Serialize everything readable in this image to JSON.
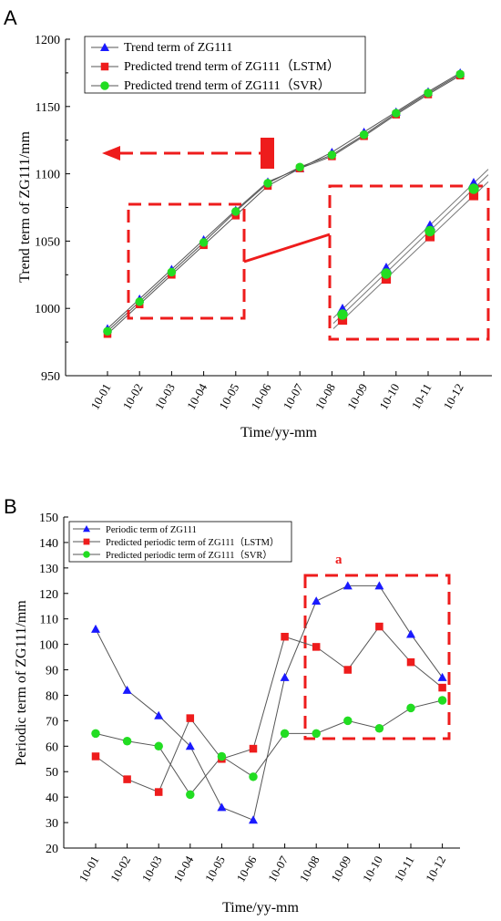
{
  "chart_data": [
    {
      "panel": "A",
      "type": "line",
      "ylabel": "Trend term of ZG111/mm",
      "xlabel": "Time/yy-mm",
      "categories": [
        "10-01",
        "10-02",
        "10-03",
        "10-04",
        "10-05",
        "10-06",
        "10-07",
        "10-08",
        "10-09",
        "10-10",
        "10-11",
        "10-12"
      ],
      "yticks": [
        "950",
        "1000",
        "1050",
        "1100",
        "1150",
        "1200"
      ],
      "ylim": [
        950,
        1200
      ],
      "series": [
        {
          "name": "Trend term of ZG111",
          "marker": "triangle",
          "color": "#1a1aff",
          "values": [
            985,
            1007,
            1029,
            1051,
            1073,
            1094,
            1104,
            1116,
            1131,
            1146,
            1161,
            1175
          ]
        },
        {
          "name": "Predicted trend term of ZG111（LSTM）",
          "marker": "square",
          "color": "#ee1c1c",
          "values": [
            981,
            1003,
            1025,
            1047,
            1069,
            1091,
            1104,
            1113,
            1128,
            1144,
            1159,
            1173
          ]
        },
        {
          "name": "Predicted trend term of ZG111（SVR）",
          "marker": "circle",
          "color": "#22dd22",
          "values": [
            983,
            1005,
            1027,
            1049,
            1072,
            1093,
            1105,
            1114,
            1129,
            1145,
            1160,
            1174
          ]
        }
      ],
      "inset_values": [
        {
          "values": [
            992,
            1022,
            1053,
            1084
          ]
        },
        {
          "values": [
            984,
            1014,
            1045,
            1075
          ]
        },
        {
          "values": [
            988,
            1018,
            1049,
            1080
          ]
        }
      ],
      "legend": "top-left",
      "grid": false
    },
    {
      "panel": "B",
      "type": "line",
      "ylabel": "Periodic term of ZG111/mm",
      "xlabel": "Time/yy-mm",
      "categories": [
        "10-01",
        "10-02",
        "10-03",
        "10-04",
        "10-05",
        "10-06",
        "10-07",
        "10-08",
        "10-09",
        "10-10",
        "10-11",
        "10-12"
      ],
      "yticks": [
        "20",
        "30",
        "40",
        "50",
        "60",
        "70",
        "80",
        "90",
        "100",
        "110",
        "120",
        "130",
        "140",
        "150"
      ],
      "ylim": [
        20,
        150
      ],
      "series": [
        {
          "name": "Periodic term of ZG111",
          "marker": "triangle",
          "color": "#1a1aff",
          "values": [
            106,
            82,
            72,
            60,
            36,
            31,
            87,
            117,
            123,
            123,
            104,
            87
          ]
        },
        {
          "name": "Predicted periodic term of ZG111（LSTM）",
          "marker": "square",
          "color": "#ee1c1c",
          "values": [
            56,
            47,
            42,
            71,
            55,
            59,
            103,
            99,
            90,
            107,
            93,
            83
          ]
        },
        {
          "name": "Predicted periodic term of ZG111（SVR）",
          "marker": "circle",
          "color": "#22dd22",
          "values": [
            65,
            62,
            60,
            41,
            56,
            48,
            65,
            65,
            70,
            67,
            75,
            78
          ]
        }
      ],
      "annotation": "a",
      "legend": "top-left",
      "grid": false
    }
  ],
  "colors": {
    "blue": "#1a1aff",
    "red": "#ee1c1c",
    "green": "#22dd22",
    "line": "#555555",
    "annotation": "#ee1c1c"
  }
}
